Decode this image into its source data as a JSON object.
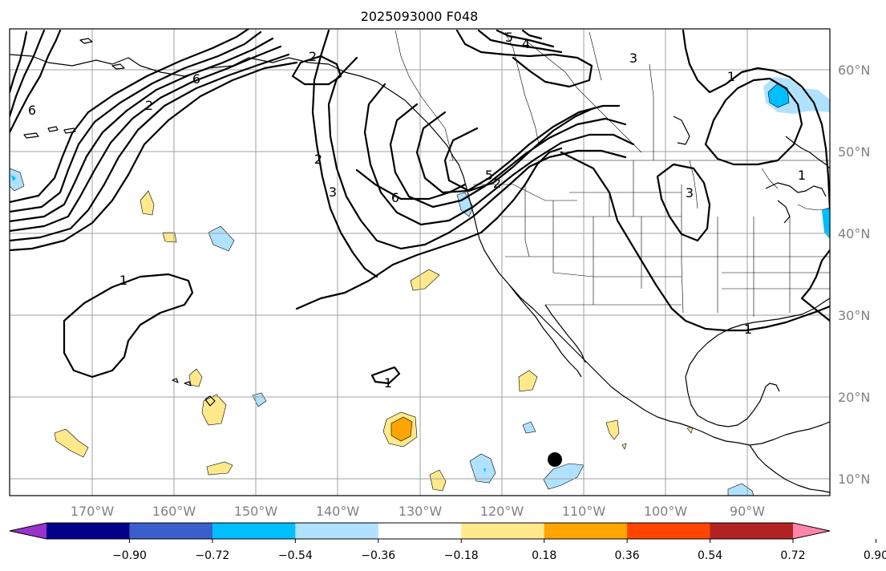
{
  "title": "2025093000 F048",
  "map": {
    "lon_labels": [
      "170°W",
      "160°W",
      "150°W",
      "140°W",
      "130°W",
      "120°W",
      "110°W",
      "100°W",
      "90°W"
    ],
    "lat_labels": [
      "60°N",
      "50°N",
      "40°N",
      "30°N",
      "20°N",
      "10°N"
    ],
    "contour_labels": [
      "1",
      "1",
      "1",
      "1",
      "2",
      "2",
      "2",
      "3",
      "3",
      "3",
      "4",
      "5",
      "5",
      "6",
      "6",
      "6",
      "1",
      "2"
    ],
    "marker": "storm-center-dot"
  },
  "colorbar": {
    "colors": [
      "#9933cc",
      "#000088",
      "#3a5fcd",
      "#00bfff",
      "#b0e2ff",
      "#ffffff",
      "#ffe98a",
      "#ffa500",
      "#ff4500",
      "#b22222",
      "#ff85aa"
    ],
    "tick_labels": [
      "−0.90",
      "−0.72",
      "−0.54",
      "−0.36",
      "−0.18",
      "0.18",
      "0.36",
      "0.54",
      "0.72",
      "0.90"
    ]
  }
}
